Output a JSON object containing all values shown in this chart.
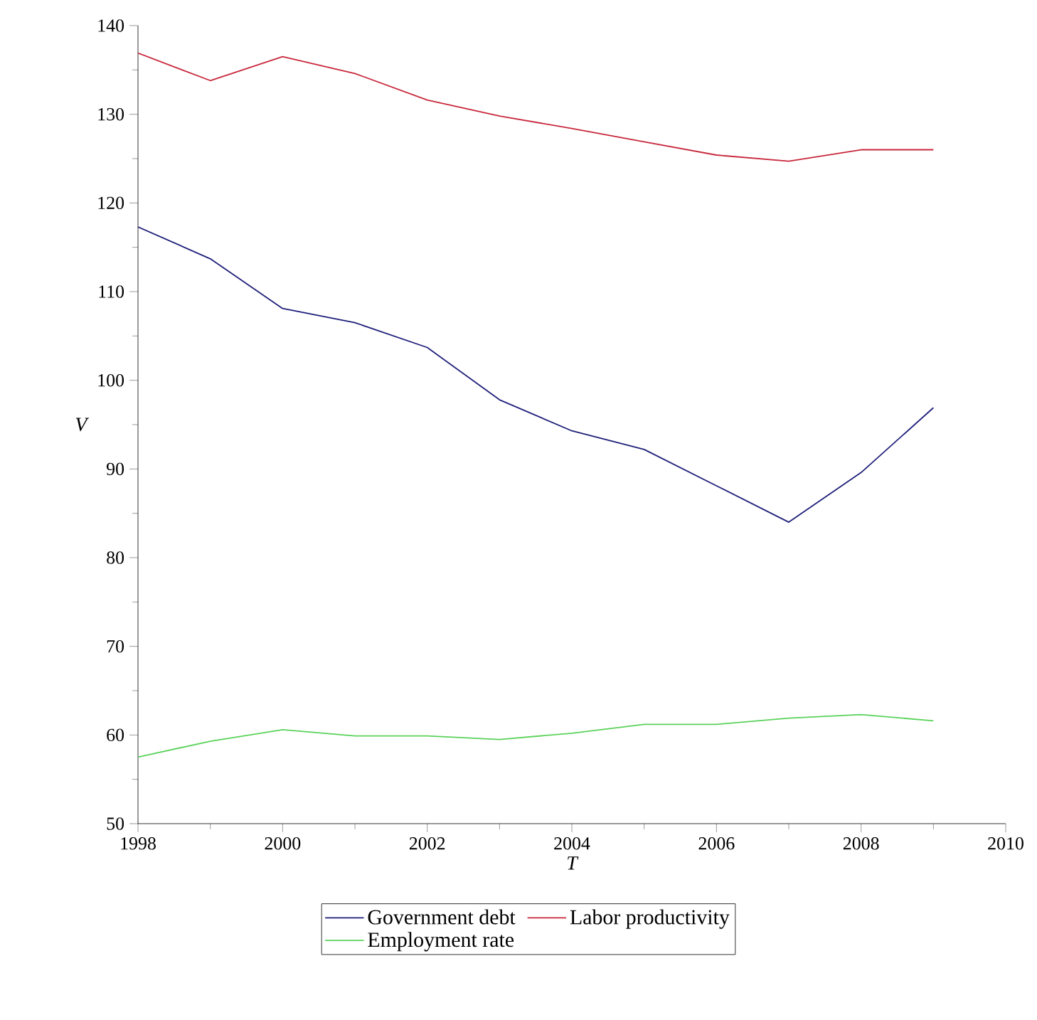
{
  "chart_data": {
    "type": "line",
    "xlabel": "T",
    "ylabel": "V",
    "x": [
      1998,
      1999,
      2000,
      2001,
      2002,
      2003,
      2004,
      2005,
      2006,
      2007,
      2008,
      2009
    ],
    "series": [
      {
        "name": "Government debt",
        "color": "#1f1f7a",
        "values": [
          117.3,
          113.7,
          108.1,
          106.5,
          103.7,
          97.8,
          94.3,
          92.2,
          88.1,
          84.0,
          89.6,
          96.9
        ]
      },
      {
        "name": "Labor productivity",
        "color": "#c8283c",
        "values": [
          136.9,
          133.8,
          136.5,
          134.6,
          131.6,
          129.8,
          128.4,
          126.9,
          125.4,
          124.7,
          126.0,
          126.0
        ]
      },
      {
        "name": "Employment rate",
        "color": "#5ad25a",
        "values": [
          57.5,
          59.3,
          60.6,
          59.9,
          59.9,
          59.5,
          60.2,
          61.2,
          61.2,
          61.9,
          62.3,
          61.6
        ]
      }
    ],
    "xlim": [
      1998,
      2010
    ],
    "ylim": [
      50,
      140
    ],
    "xticks": [
      1998,
      2000,
      2002,
      2004,
      2006,
      2008,
      2010
    ],
    "yticks": [
      50,
      60,
      70,
      80,
      90,
      100,
      110,
      120,
      130,
      140
    ],
    "grid": false,
    "legend": "bottom",
    "marker": "none",
    "line_style": "solid"
  }
}
